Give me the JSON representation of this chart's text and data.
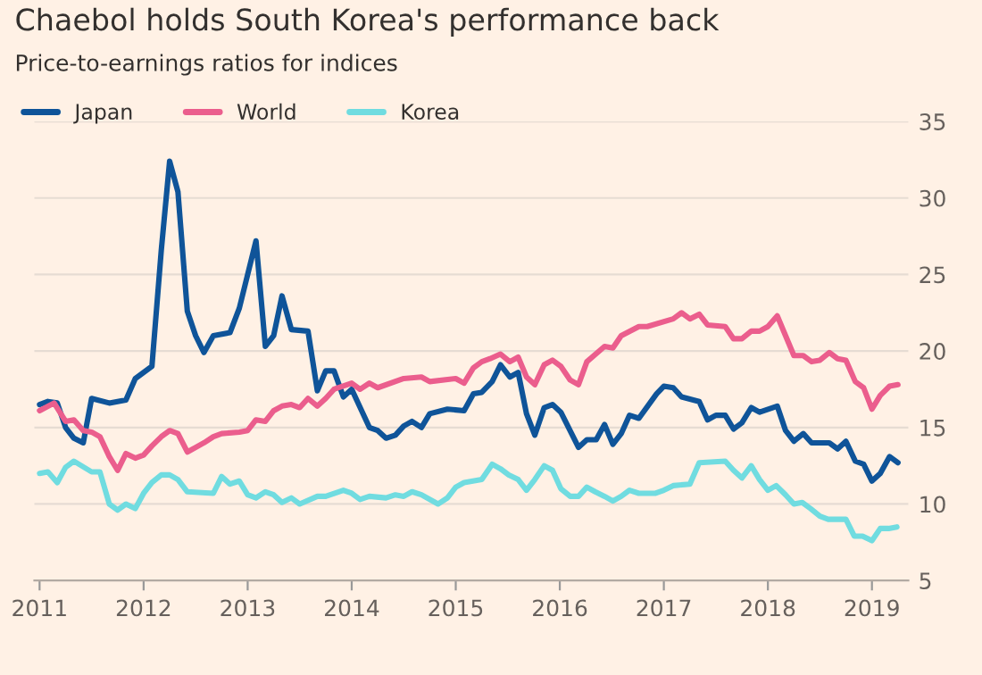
{
  "chart_data": {
    "type": "line",
    "title": "Chaebol holds South Korea's performance back",
    "subtitle": "Price-to-earnings ratios for indices",
    "series": [
      {
        "name": "Japan",
        "color": "#0f5499",
        "x": [
          2011.0,
          2011.08,
          2011.17,
          2011.25,
          2011.33,
          2011.42,
          2011.5,
          2011.67,
          2011.83,
          2011.92,
          2012.08,
          2012.17,
          2012.25,
          2012.33,
          2012.42,
          2012.5,
          2012.58,
          2012.67,
          2012.83,
          2012.92,
          2013.08,
          2013.17,
          2013.25,
          2013.33,
          2013.42,
          2013.58,
          2013.67,
          2013.75,
          2013.83,
          2013.92,
          2014.0,
          2014.17,
          2014.25,
          2014.33,
          2014.42,
          2014.5,
          2014.58,
          2014.67,
          2014.75,
          2014.92,
          2015.08,
          2015.17,
          2015.25,
          2015.35,
          2015.43,
          2015.52,
          2015.6,
          2015.68,
          2015.76,
          2015.85,
          2015.93,
          2016.01,
          2016.18,
          2016.26,
          2016.35,
          2016.43,
          2016.51,
          2016.59,
          2016.67,
          2016.76,
          2016.93,
          2017.0,
          2017.09,
          2017.17,
          2017.34,
          2017.42,
          2017.5,
          2017.59,
          2017.67,
          2017.75,
          2017.84,
          2017.92,
          2018.09,
          2018.17,
          2018.25,
          2018.34,
          2018.42,
          2018.59,
          2018.67,
          2018.75,
          2018.84,
          2018.92,
          2019.0,
          2019.08,
          2019.17,
          2019.25
        ],
        "values": [
          16.5,
          16.7,
          16.6,
          15.0,
          14.3,
          14.0,
          16.9,
          16.6,
          16.8,
          18.2,
          19.0,
          26.6,
          32.4,
          30.4,
          22.6,
          21.0,
          19.9,
          21.0,
          21.2,
          22.8,
          27.2,
          20.3,
          21.0,
          23.6,
          21.4,
          21.3,
          17.4,
          18.7,
          18.7,
          17.0,
          17.5,
          15.0,
          14.8,
          14.3,
          14.5,
          15.1,
          15.4,
          15.0,
          15.9,
          16.2,
          16.1,
          17.2,
          17.3,
          18.0,
          19.1,
          18.3,
          18.6,
          15.9,
          14.5,
          16.3,
          16.5,
          16.0,
          13.7,
          14.2,
          14.2,
          15.2,
          13.9,
          14.6,
          15.8,
          15.6,
          17.2,
          17.7,
          17.6,
          17.0,
          16.7,
          15.5,
          15.8,
          15.8,
          14.9,
          15.3,
          16.3,
          16.0,
          16.4,
          14.8,
          14.1,
          14.6,
          14.0,
          14.0,
          13.6,
          14.1,
          12.8,
          12.6,
          11.5,
          12.0,
          13.1,
          12.7
        ]
      },
      {
        "name": "World",
        "color": "#eb5e8d",
        "x": [
          2011.0,
          2011.14,
          2011.25,
          2011.33,
          2011.42,
          2011.5,
          2011.58,
          2011.67,
          2011.75,
          2011.83,
          2011.92,
          2012.0,
          2012.08,
          2012.17,
          2012.25,
          2012.33,
          2012.42,
          2012.5,
          2012.58,
          2012.67,
          2012.75,
          2012.92,
          2013.0,
          2013.08,
          2013.17,
          2013.25,
          2013.33,
          2013.42,
          2013.5,
          2013.58,
          2013.67,
          2013.75,
          2013.83,
          2014.0,
          2014.08,
          2014.17,
          2014.25,
          2014.5,
          2014.67,
          2014.75,
          2015.0,
          2015.08,
          2015.17,
          2015.25,
          2015.33,
          2015.43,
          2015.52,
          2015.6,
          2015.68,
          2015.76,
          2015.85,
          2015.93,
          2016.01,
          2016.1,
          2016.18,
          2016.26,
          2016.43,
          2016.51,
          2016.59,
          2016.76,
          2016.84,
          2017.09,
          2017.17,
          2017.25,
          2017.34,
          2017.42,
          2017.59,
          2017.67,
          2017.75,
          2017.84,
          2017.92,
          2018.0,
          2018.09,
          2018.17,
          2018.25,
          2018.34,
          2018.42,
          2018.5,
          2018.59,
          2018.67,
          2018.75,
          2018.84,
          2018.92,
          2019.0,
          2019.08,
          2019.17,
          2019.25
        ],
        "values": [
          16.1,
          16.6,
          15.4,
          15.5,
          14.8,
          14.7,
          14.4,
          13.1,
          12.2,
          13.3,
          13.0,
          13.2,
          13.8,
          14.4,
          14.8,
          14.6,
          13.4,
          13.7,
          14.0,
          14.4,
          14.6,
          14.7,
          14.8,
          15.5,
          15.4,
          16.1,
          16.4,
          16.5,
          16.3,
          16.9,
          16.4,
          16.9,
          17.5,
          17.9,
          17.5,
          17.9,
          17.6,
          18.2,
          18.3,
          18.0,
          18.2,
          17.9,
          18.9,
          19.3,
          19.5,
          19.8,
          19.3,
          19.6,
          18.3,
          17.8,
          19.1,
          19.4,
          19.0,
          18.1,
          17.8,
          19.3,
          20.3,
          20.2,
          21.0,
          21.6,
          21.6,
          22.1,
          22.5,
          22.1,
          22.4,
          21.7,
          21.6,
          20.8,
          20.8,
          21.3,
          21.3,
          21.6,
          22.3,
          21.0,
          19.7,
          19.7,
          19.3,
          19.4,
          19.9,
          19.5,
          19.4,
          18.0,
          17.6,
          16.2,
          17.1,
          17.7,
          17.8
        ]
      },
      {
        "name": "Korea",
        "color": "#70dce0",
        "x": [
          2011.0,
          2011.08,
          2011.17,
          2011.25,
          2011.33,
          2011.5,
          2011.58,
          2011.67,
          2011.75,
          2011.83,
          2011.92,
          2012.0,
          2012.08,
          2012.17,
          2012.25,
          2012.33,
          2012.42,
          2012.67,
          2012.75,
          2012.83,
          2012.92,
          2013.0,
          2013.08,
          2013.17,
          2013.25,
          2013.33,
          2013.42,
          2013.5,
          2013.67,
          2013.75,
          2013.92,
          2014.0,
          2014.08,
          2014.17,
          2014.33,
          2014.42,
          2014.5,
          2014.58,
          2014.67,
          2014.83,
          2014.92,
          2015.0,
          2015.08,
          2015.25,
          2015.35,
          2015.43,
          2015.51,
          2015.6,
          2015.68,
          2015.76,
          2015.85,
          2015.93,
          2016.01,
          2016.1,
          2016.18,
          2016.26,
          2016.34,
          2016.43,
          2016.51,
          2016.59,
          2016.67,
          2016.76,
          2016.92,
          2017.0,
          2017.09,
          2017.25,
          2017.34,
          2017.59,
          2017.67,
          2017.75,
          2017.84,
          2017.92,
          2018.0,
          2018.08,
          2018.17,
          2018.25,
          2018.33,
          2018.41,
          2018.5,
          2018.58,
          2018.75,
          2018.83,
          2018.91,
          2019.0,
          2019.08,
          2019.16,
          2019.24
        ],
        "values": [
          12.0,
          12.1,
          11.4,
          12.4,
          12.8,
          12.1,
          12.1,
          10.0,
          9.6,
          10.0,
          9.7,
          10.7,
          11.4,
          11.9,
          11.9,
          11.6,
          10.8,
          10.7,
          11.8,
          11.3,
          11.5,
          10.6,
          10.4,
          10.8,
          10.6,
          10.1,
          10.4,
          10.0,
          10.5,
          10.5,
          10.9,
          10.7,
          10.3,
          10.5,
          10.4,
          10.6,
          10.5,
          10.8,
          10.6,
          10.0,
          10.4,
          11.1,
          11.4,
          11.6,
          12.6,
          12.3,
          11.9,
          11.6,
          10.9,
          11.6,
          12.5,
          12.2,
          11.0,
          10.5,
          10.5,
          11.1,
          10.8,
          10.5,
          10.2,
          10.5,
          10.9,
          10.7,
          10.7,
          10.9,
          11.2,
          11.3,
          12.7,
          12.8,
          12.2,
          11.7,
          12.5,
          11.6,
          10.9,
          11.2,
          10.6,
          10.0,
          10.1,
          9.7,
          9.2,
          9.0,
          9.0,
          7.9,
          7.9,
          7.6,
          8.4,
          8.4,
          8.5
        ]
      }
    ],
    "xlim": [
      2010.95,
      2019.35
    ],
    "xticks": [
      2011,
      2012,
      2013,
      2014,
      2015,
      2016,
      2017,
      2018,
      2019
    ],
    "ylim": [
      5,
      35
    ],
    "yticks": [
      5,
      10,
      15,
      20,
      25,
      30,
      35
    ],
    "grid": "y",
    "legend": "top left",
    "marker": "none",
    "line_style": "solid"
  }
}
